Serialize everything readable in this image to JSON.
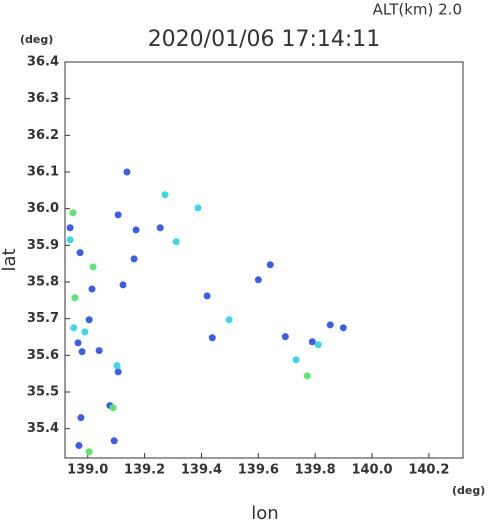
{
  "chart_data": {
    "type": "scatter",
    "title": "2020/01/06 17:14:11",
    "subtitle": "ALT(km)  2.0",
    "x_label": "lon",
    "y_label": "lat",
    "x_unit": "(deg)",
    "y_unit": "(deg)",
    "xlim": [
      138.92,
      140.32
    ],
    "ylim": [
      35.32,
      36.4
    ],
    "xticks": [
      {
        "value": 139,
        "label": "139.0"
      },
      139.2,
      139.4,
      139.6,
      139.8,
      {
        "value": 140,
        "label": "140.0"
      },
      140.2
    ],
    "yticks": [
      36.4,
      36.3,
      36.2,
      36.1,
      {
        "value": 36,
        "label": "36.0"
      },
      35.9,
      35.8,
      35.7,
      35.6,
      35.5,
      35.4
    ],
    "series": [
      {
        "color": "#3b5cf0",
        "x": [
          139.138,
          138.938,
          138.973,
          139.015,
          139.005,
          138.966,
          138.98,
          139.04,
          139.107,
          139.078,
          138.976,
          138.969,
          139.093,
          139.17,
          139.255,
          139.163,
          139.438,
          139.642,
          139.695,
          139.79,
          139.853,
          139.899,
          139.107,
          139.124,
          139.42,
          139.6
        ],
        "values": [
          36.1,
          35.948,
          35.88,
          35.781,
          35.697,
          35.634,
          35.61,
          35.613,
          35.555,
          35.463,
          35.43,
          35.354,
          35.367,
          35.942,
          35.948,
          35.863,
          35.648,
          35.847,
          35.651,
          35.637,
          35.683,
          35.675,
          35.983,
          35.792,
          35.762,
          35.806
        ]
      },
      {
        "color": "#3ad8e8",
        "x": [
          138.938,
          138.951,
          138.99,
          139.103,
          139.311,
          139.388,
          139.497,
          139.811,
          139.733,
          139.272
        ],
        "values": [
          35.915,
          35.675,
          35.664,
          35.572,
          35.91,
          36.002,
          35.697,
          35.629,
          35.588,
          36.038
        ]
      },
      {
        "color": "#5ae86a",
        "x": [
          138.948,
          139.019,
          138.955,
          139.089,
          139.005,
          139.772
        ],
        "values": [
          35.989,
          35.841,
          35.757,
          35.457,
          35.337,
          35.544
        ]
      }
    ]
  }
}
